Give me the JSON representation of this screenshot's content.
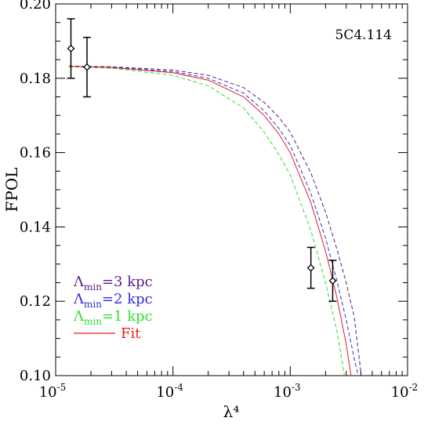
{
  "chart_data": {
    "type": "line",
    "annotation": "5C4.114",
    "xlabel": "λ⁴",
    "ylabel": "FPOL",
    "xscale": "log",
    "xlim": [
      1e-05,
      0.01
    ],
    "ylim": [
      0.1,
      0.2
    ],
    "grid": false,
    "legend_position": "bottom-left",
    "x_ticks": [
      {
        "value": 1e-05,
        "base": "10",
        "exp": "-5"
      },
      {
        "value": 0.0001,
        "base": "10",
        "exp": "-4"
      },
      {
        "value": 0.001,
        "base": "10",
        "exp": "-3"
      },
      {
        "value": 0.01,
        "base": "10",
        "exp": "-2"
      }
    ],
    "y_ticks": [
      {
        "value": 0.1,
        "label": "0.10"
      },
      {
        "value": 0.12,
        "label": "0.12"
      },
      {
        "value": 0.14,
        "label": "0.14"
      },
      {
        "value": 0.16,
        "label": "0.16"
      },
      {
        "value": 0.18,
        "label": "0.18"
      },
      {
        "value": 0.2,
        "label": "0.20"
      }
    ],
    "points": [
      {
        "x": 1.35e-05,
        "y": 0.188,
        "yerr": 0.008
      },
      {
        "x": 1.85e-05,
        "y": 0.183,
        "yerr": 0.008
      },
      {
        "x": 0.0015,
        "y": 0.129,
        "yerr": 0.0055
      },
      {
        "x": 0.0023,
        "y": 0.1255,
        "yerr": 0.0055
      }
    ],
    "series": [
      {
        "name": "Λmin=3 kpc",
        "color": "#5a1a8c",
        "style": "dashed",
        "x": [
          1.3e-05,
          3e-05,
          0.0001,
          0.0002,
          0.0004,
          0.0006,
          0.0008,
          0.001,
          0.0015,
          0.002,
          0.0025,
          0.003,
          0.0035,
          0.004
        ],
        "y": [
          0.1833,
          0.1831,
          0.1822,
          0.1808,
          0.1775,
          0.1735,
          0.1695,
          0.1655,
          0.1545,
          0.144,
          0.134,
          0.125,
          0.116,
          0.101
        ]
      },
      {
        "name": "Λmin=2 kpc",
        "color": "#3030d8",
        "style": "dashed",
        "x": [
          1.3e-05,
          3e-05,
          0.0001,
          0.0002,
          0.0004,
          0.0006,
          0.0008,
          0.001,
          0.0015,
          0.002,
          0.0025,
          0.003,
          0.0036,
          0.0038
        ],
        "y": [
          0.1832,
          0.183,
          0.1818,
          0.18,
          0.176,
          0.1712,
          0.1665,
          0.162,
          0.149,
          0.137,
          0.1255,
          0.115,
          0.103,
          0.1
        ]
      },
      {
        "name": "Λmin=1 kpc",
        "color": "#33dd33",
        "style": "dashed",
        "x": [
          1.3e-05,
          3e-05,
          0.0001,
          0.0002,
          0.0004,
          0.0006,
          0.0008,
          0.001,
          0.0015,
          0.002,
          0.0025,
          0.0029
        ],
        "y": [
          0.1831,
          0.1827,
          0.1808,
          0.178,
          0.172,
          0.1655,
          0.1595,
          0.154,
          0.139,
          0.125,
          0.112,
          0.1
        ]
      },
      {
        "name": "Fit",
        "color": "#e02020",
        "style": "solid",
        "x": [
          1.3e-05,
          3e-05,
          0.0001,
          0.0002,
          0.0004,
          0.0006,
          0.0008,
          0.001,
          0.0015,
          0.002,
          0.0025,
          0.003,
          0.0033
        ],
        "y": [
          0.1832,
          0.1829,
          0.1815,
          0.1795,
          0.175,
          0.17,
          0.165,
          0.16,
          0.1465,
          0.1335,
          0.121,
          0.1085,
          0.1
        ]
      }
    ],
    "legend": [
      {
        "base": "Λ",
        "sub": "min",
        "text": "=3 kpc",
        "color": "#5a1a8c",
        "style": "none"
      },
      {
        "base": "Λ",
        "sub": "min",
        "text": "=2 kpc",
        "color": "#3030d8",
        "style": "none"
      },
      {
        "base": "Λ",
        "sub": "min",
        "text": "=1 kpc",
        "color": "#33dd33",
        "style": "none"
      },
      {
        "base": "",
        "sub": "",
        "text": "Fit",
        "color": "#e02020",
        "style": "solid"
      }
    ]
  }
}
